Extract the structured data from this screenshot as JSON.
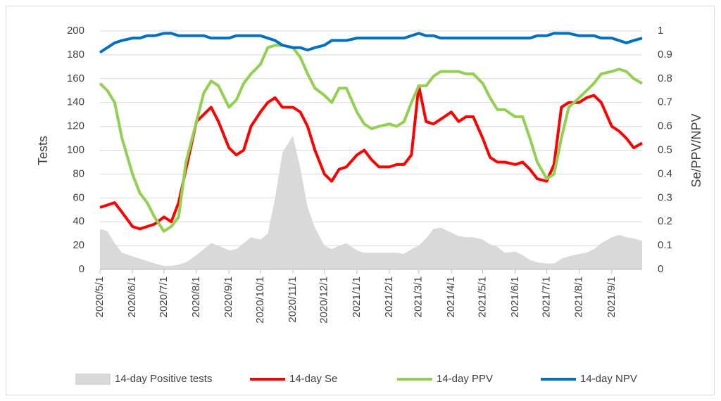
{
  "chart_data": {
    "type": "line",
    "y_label": "Tests",
    "y2_label": "Se/PPV/NPV",
    "x": [
      "2020/5/1",
      "2020/5/8",
      "2020/5/15",
      "2020/5/22",
      "2020/6/1",
      "2020/6/8",
      "2020/6/15",
      "2020/6/22",
      "2020/7/1",
      "2020/7/8",
      "2020/7/15",
      "2020/7/22",
      "2020/8/1",
      "2020/8/8",
      "2020/8/15",
      "2020/8/22",
      "2020/9/1",
      "2020/9/8",
      "2020/9/15",
      "2020/9/22",
      "2020/10/1",
      "2020/10/8",
      "2020/10/15",
      "2020/10/22",
      "2020/11/1",
      "2020/11/8",
      "2020/11/15",
      "2020/11/22",
      "2020/12/1",
      "2020/12/8",
      "2020/12/15",
      "2020/12/22",
      "2021/1/1",
      "2021/1/8",
      "2021/1/15",
      "2021/1/22",
      "2021/2/1",
      "2021/2/8",
      "2021/2/15",
      "2021/2/22",
      "2021/3/1",
      "2021/3/8",
      "2021/3/15",
      "2021/3/22",
      "2021/4/1",
      "2021/4/8",
      "2021/4/15",
      "2021/4/22",
      "2021/5/1",
      "2021/5/8",
      "2021/5/15",
      "2021/5/22",
      "2021/6/1",
      "2021/6/8",
      "2021/6/15",
      "2021/6/22",
      "2021/7/1",
      "2021/7/8",
      "2021/7/15",
      "2021/7/22",
      "2021/8/1",
      "2021/8/8",
      "2021/8/15",
      "2021/8/22",
      "2021/9/1",
      "2021/9/8",
      "2021/9/15",
      "2021/9/22",
      "2021/9/30"
    ],
    "xlim": [
      "2020/5/1",
      "2021/9/30"
    ],
    "xticks": [
      "2020/5/1",
      "2020/6/1",
      "2020/7/1",
      "2020/8/1",
      "2020/9/1",
      "2020/10/1",
      "2020/11/1",
      "2020/12/1",
      "2021/1/1",
      "2021/2/1",
      "2021/3/1",
      "2021/4/1",
      "2021/5/1",
      "2021/6/1",
      "2021/7/1",
      "2021/8/1",
      "2021/9/1"
    ],
    "ylim": [
      0,
      200
    ],
    "yticks": [
      0,
      20,
      40,
      60,
      80,
      100,
      120,
      140,
      160,
      180,
      200
    ],
    "y2lim": [
      0,
      1
    ],
    "y2ticks": [
      0,
      0.1,
      0.2,
      0.3,
      0.4,
      0.5,
      0.6,
      0.7,
      0.8,
      0.9,
      1
    ],
    "grid": true,
    "legend": "bottom",
    "series": [
      {
        "name": "14-day Positive tests",
        "type": "area",
        "color": "#d9d9d9",
        "values": [
          34,
          32,
          22,
          14,
          11,
          9,
          7,
          5,
          3,
          3,
          4,
          6,
          12,
          17,
          22,
          20,
          16,
          17,
          22,
          27,
          25,
          30,
          60,
          98,
          112,
          85,
          52,
          35,
          20,
          17,
          20,
          22,
          16,
          14,
          14,
          14,
          14,
          14,
          13,
          17,
          20,
          26,
          34,
          35,
          31,
          28,
          27,
          27,
          25,
          21,
          19,
          14,
          15,
          12,
          8,
          6,
          5,
          5,
          9,
          11,
          13,
          14,
          17,
          22,
          27,
          29,
          27,
          26,
          24
        ]
      },
      {
        "name": "14-day Se",
        "type": "line",
        "axis": "y2",
        "color": "#ff0000",
        "values": [
          0.26,
          0.27,
          0.28,
          0.24,
          0.18,
          0.17,
          0.18,
          0.19,
          0.22,
          0.2,
          0.28,
          0.42,
          0.62,
          0.65,
          0.68,
          0.62,
          0.51,
          0.48,
          0.5,
          0.6,
          0.66,
          0.7,
          0.72,
          0.68,
          0.68,
          0.66,
          0.6,
          0.5,
          0.4,
          0.37,
          0.42,
          0.43,
          0.48,
          0.5,
          0.46,
          0.43,
          0.43,
          0.44,
          0.44,
          0.48,
          0.77,
          0.62,
          0.61,
          0.63,
          0.66,
          0.62,
          0.64,
          0.64,
          0.55,
          0.47,
          0.45,
          0.45,
          0.44,
          0.45,
          0.42,
          0.38,
          0.37,
          0.44,
          0.68,
          0.7,
          0.7,
          0.72,
          0.73,
          0.7,
          0.6,
          0.58,
          0.55,
          0.51,
          0.53
        ]
      },
      {
        "name": "14-day PPV",
        "type": "line",
        "axis": "y2",
        "color": "#92d050",
        "values": [
          0.78,
          0.75,
          0.7,
          0.55,
          0.4,
          0.32,
          0.28,
          0.22,
          0.16,
          0.18,
          0.22,
          0.45,
          0.62,
          0.74,
          0.79,
          0.77,
          0.68,
          0.71,
          0.78,
          0.82,
          0.86,
          0.93,
          0.94,
          0.94,
          0.93,
          0.89,
          0.82,
          0.76,
          0.73,
          0.7,
          0.76,
          0.76,
          0.66,
          0.61,
          0.59,
          0.6,
          0.61,
          0.6,
          0.62,
          0.7,
          0.77,
          0.77,
          0.81,
          0.83,
          0.83,
          0.83,
          0.82,
          0.82,
          0.78,
          0.72,
          0.67,
          0.67,
          0.64,
          0.64,
          0.55,
          0.45,
          0.38,
          0.4,
          0.55,
          0.68,
          0.72,
          0.75,
          0.78,
          0.82,
          0.83,
          0.84,
          0.83,
          0.8,
          0.78
        ]
      },
      {
        "name": "14-day NPV",
        "type": "line",
        "axis": "y2",
        "color": "#0070c0",
        "values": [
          0.91,
          0.93,
          0.95,
          0.96,
          0.97,
          0.97,
          0.98,
          0.98,
          0.99,
          0.99,
          0.98,
          0.98,
          0.98,
          0.98,
          0.97,
          0.97,
          0.97,
          0.98,
          0.98,
          0.98,
          0.98,
          0.97,
          0.96,
          0.94,
          0.93,
          0.93,
          0.92,
          0.93,
          0.94,
          0.96,
          0.96,
          0.96,
          0.97,
          0.97,
          0.97,
          0.97,
          0.97,
          0.97,
          0.97,
          0.98,
          0.99,
          0.98,
          0.98,
          0.97,
          0.97,
          0.97,
          0.97,
          0.97,
          0.97,
          0.97,
          0.97,
          0.97,
          0.97,
          0.97,
          0.97,
          0.98,
          0.98,
          0.99,
          0.99,
          0.99,
          0.98,
          0.98,
          0.98,
          0.97,
          0.97,
          0.96,
          0.95,
          0.96,
          0.97
        ]
      }
    ]
  }
}
